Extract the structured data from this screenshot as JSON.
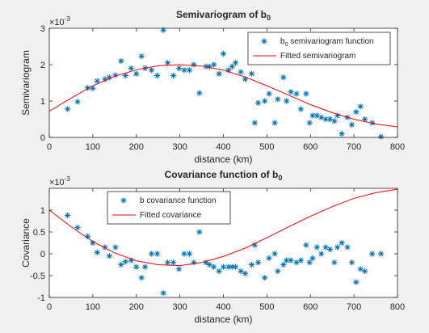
{
  "chart_data": [
    {
      "type": "scatter",
      "title": "Semivariogram of b",
      "title_subscript": "0",
      "xlabel": "distance (km)",
      "ylabel": "Semivariogram",
      "exponent_label": "×10",
      "exponent_power": "-3",
      "xlim": [
        0,
        800
      ],
      "ylim": [
        0,
        3
      ],
      "xticks": [
        0,
        100,
        200,
        300,
        400,
        500,
        600,
        700,
        800
      ],
      "yticks": [
        0,
        1,
        2,
        3
      ],
      "legend": {
        "position": "top-right",
        "marker_label": "b",
        "marker_subscript": "0",
        "marker_label_rest": " semivariogram function",
        "line_label": "Fitted semivariogram"
      },
      "series": [
        {
          "name": "b0 semivariogram function",
          "style": "marker-asterisk",
          "color": "#0072bd",
          "x": [
            42,
            65,
            88,
            100,
            110,
            128,
            138,
            152,
            165,
            175,
            188,
            200,
            212,
            220,
            235,
            248,
            262,
            272,
            285,
            298,
            310,
            322,
            332,
            345,
            360,
            368,
            378,
            390,
            400,
            412,
            420,
            428,
            440,
            450,
            465,
            472,
            480,
            495,
            505,
            518,
            525,
            538,
            545,
            555,
            568,
            578,
            590,
            598,
            605,
            615,
            625,
            635,
            645,
            655,
            662,
            672,
            685,
            695,
            705,
            715,
            725,
            742,
            762
          ],
          "y": [
            0.78,
            0.98,
            1.36,
            1.35,
            1.55,
            1.6,
            1.65,
            1.71,
            2.1,
            1.7,
            1.9,
            1.75,
            2.23,
            1.9,
            1.85,
            1.7,
            2.95,
            2.05,
            1.7,
            1.9,
            1.85,
            1.85,
            2.0,
            1.22,
            1.95,
            1.95,
            2.0,
            1.75,
            2.3,
            1.85,
            1.95,
            2.05,
            1.8,
            1.6,
            1.75,
            0.4,
            0.95,
            1.0,
            1.2,
            0.4,
            1.05,
            1.65,
            1.0,
            1.25,
            1.2,
            0.78,
            1.2,
            0.4,
            0.6,
            0.6,
            0.55,
            0.5,
            0.5,
            0.45,
            0.6,
            0.1,
            0.55,
            0.35,
            0.7,
            0.85,
            0.5,
            0.4,
            0.02
          ]
        },
        {
          "name": "Fitted semivariogram",
          "style": "line",
          "color": "#ff0000",
          "x": [
            0,
            50,
            100,
            150,
            200,
            250,
            300,
            350,
            400,
            450,
            500,
            550,
            600,
            650,
            700,
            750,
            800
          ],
          "y": [
            0.72,
            1.08,
            1.42,
            1.68,
            1.86,
            1.97,
            2.0,
            1.96,
            1.85,
            1.66,
            1.42,
            1.16,
            0.9,
            0.68,
            0.5,
            0.37,
            0.29
          ]
        }
      ]
    },
    {
      "type": "scatter",
      "title": "Covariance function of b",
      "title_subscript": "0",
      "xlabel": "distance (km)",
      "ylabel": "Covariance",
      "exponent_label": "×10",
      "exponent_power": "-3",
      "xlim": [
        0,
        800
      ],
      "ylim": [
        -1,
        1.5
      ],
      "xticks": [
        0,
        100,
        200,
        300,
        400,
        500,
        600,
        700,
        800
      ],
      "yticks": [
        -1,
        -0.5,
        0,
        0.5,
        1
      ],
      "legend": {
        "position": "top-left",
        "marker_label": "b covariance function",
        "line_label": "Fitted covariance"
      },
      "series": [
        {
          "name": "b covariance function",
          "style": "marker-asterisk",
          "color": "#0072bd",
          "x": [
            42,
            65,
            88,
            100,
            110,
            128,
            138,
            152,
            165,
            175,
            188,
            200,
            212,
            220,
            235,
            248,
            262,
            272,
            285,
            298,
            310,
            322,
            332,
            345,
            360,
            368,
            378,
            390,
            400,
            412,
            420,
            428,
            440,
            450,
            465,
            472,
            480,
            495,
            505,
            518,
            525,
            538,
            545,
            555,
            568,
            578,
            590,
            598,
            605,
            615,
            625,
            635,
            645,
            655,
            662,
            672,
            685,
            695,
            705,
            715,
            725,
            742,
            762
          ],
          "y": [
            0.88,
            0.6,
            0.4,
            0.25,
            0.03,
            0.15,
            -0.05,
            0.15,
            -0.25,
            -0.18,
            -0.15,
            -0.3,
            -0.55,
            -0.3,
            0.0,
            0.0,
            -0.9,
            -0.2,
            -0.2,
            -0.35,
            0.0,
            0.0,
            -0.2,
            0.5,
            -0.2,
            -0.25,
            -0.3,
            -0.4,
            -0.3,
            -0.3,
            -0.3,
            -0.3,
            -0.4,
            -0.45,
            -0.25,
            0.2,
            -0.2,
            -0.55,
            -0.1,
            0.0,
            -0.4,
            -0.25,
            -0.15,
            -0.15,
            -0.2,
            -0.15,
            0.2,
            -0.2,
            -0.1,
            0.15,
            0.0,
            0.15,
            0.1,
            -0.2,
            0.15,
            0.25,
            0.15,
            -0.2,
            -0.65,
            -0.35,
            -0.4,
            0.0,
            0.0
          ]
        },
        {
          "name": "Fitted covariance",
          "style": "line",
          "color": "#ff0000",
          "x": [
            0,
            50,
            100,
            150,
            200,
            250,
            300,
            350,
            400,
            450,
            500,
            550,
            600,
            650,
            700,
            750,
            800
          ],
          "y": [
            1.0,
            0.62,
            0.28,
            0.02,
            -0.16,
            -0.25,
            -0.27,
            -0.2,
            -0.06,
            0.13,
            0.37,
            0.62,
            0.86,
            1.08,
            1.27,
            1.4,
            1.48
          ]
        }
      ]
    }
  ]
}
